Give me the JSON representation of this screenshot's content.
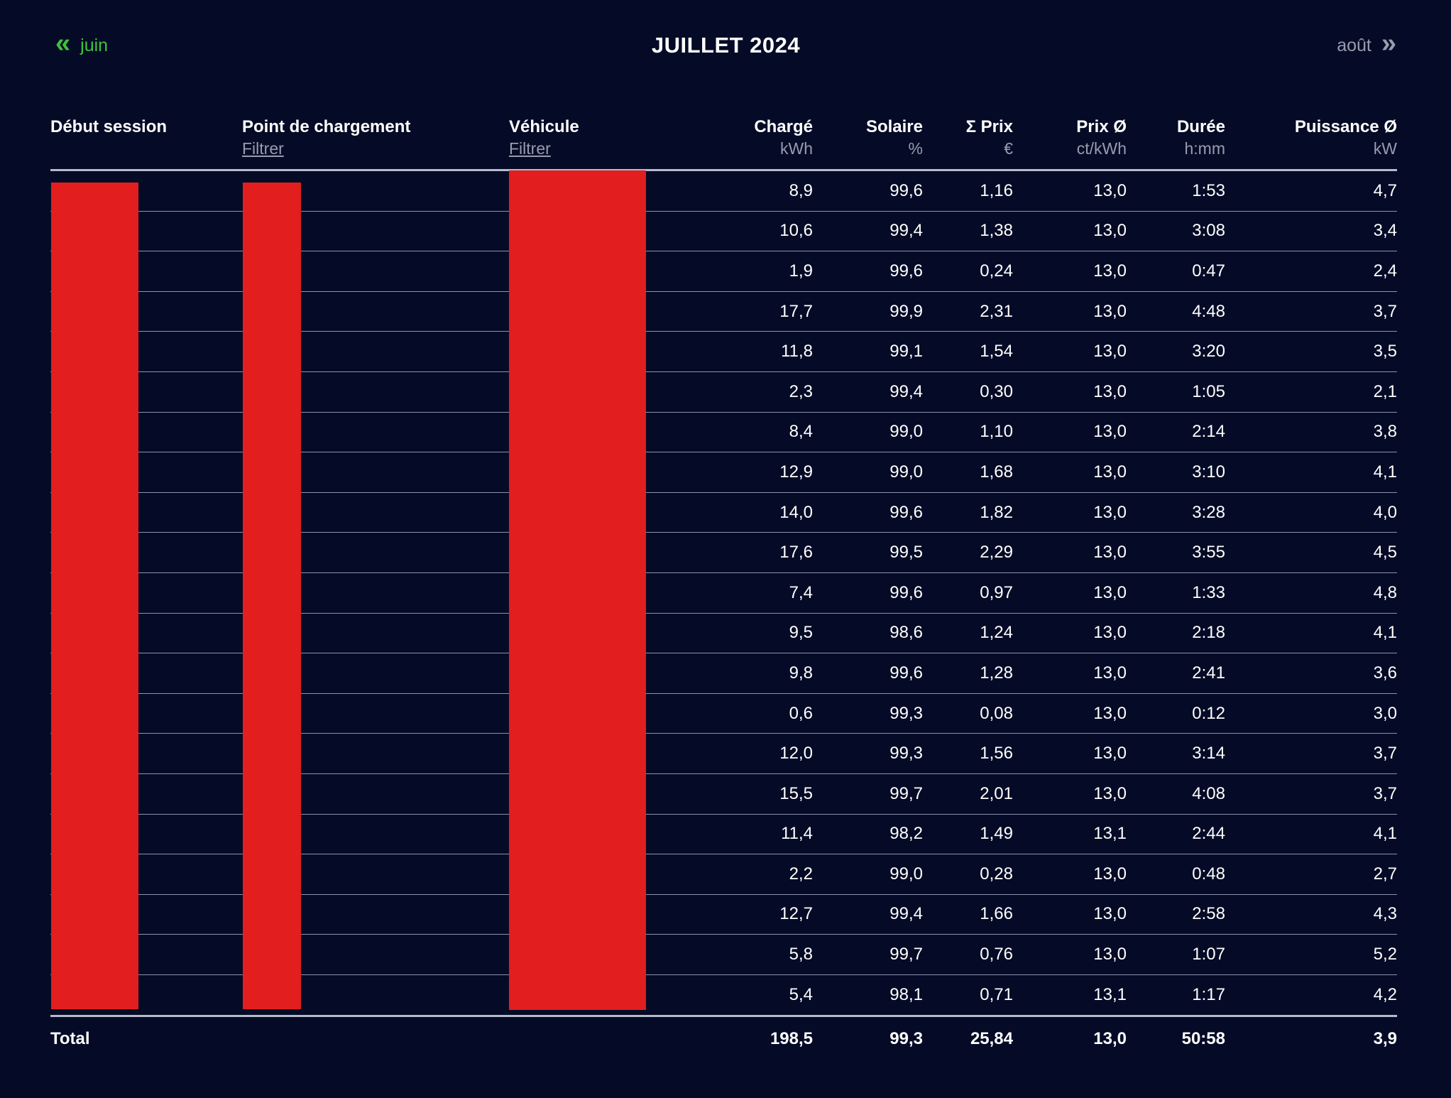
{
  "colors": {
    "background": "#050b26",
    "text": "#ffffff",
    "muted_text": "#989cae",
    "accent_green": "#3ec33e",
    "redaction_red": "#e21e1e",
    "separator": "#b6bac9",
    "row_line": "rgba(200,205,228,0.7)"
  },
  "nav": {
    "prev": {
      "label": "juin",
      "icon_glyph": "«"
    },
    "title": "JUILLET 2024",
    "next": {
      "label": "août",
      "icon_glyph": "»"
    }
  },
  "table": {
    "columns": [
      {
        "label": "Début session",
        "sub": ""
      },
      {
        "label": "Point de chargement",
        "sub": "Filtrer"
      },
      {
        "label": "Véhicule",
        "sub": "Filtrer"
      },
      {
        "label": "Chargé",
        "sub": "kWh"
      },
      {
        "label": "Solaire",
        "sub": "%"
      },
      {
        "label": "Σ Prix",
        "sub": "€"
      },
      {
        "label": "Prix Ø",
        "sub": "ct/kWh"
      },
      {
        "label": "Durée",
        "sub": "h:mm"
      },
      {
        "label": "Puissance Ø",
        "sub": "kW"
      }
    ],
    "redacted_columns": [
      "Début session",
      "Point de chargement",
      "Véhicule"
    ],
    "rows": [
      [
        "",
        "",
        "",
        "8,9",
        "99,6",
        "1,16",
        "13,0",
        "1:53",
        "4,7"
      ],
      [
        "",
        "",
        "",
        "10,6",
        "99,4",
        "1,38",
        "13,0",
        "3:08",
        "3,4"
      ],
      [
        "",
        "",
        "",
        "1,9",
        "99,6",
        "0,24",
        "13,0",
        "0:47",
        "2,4"
      ],
      [
        "",
        "",
        "",
        "17,7",
        "99,9",
        "2,31",
        "13,0",
        "4:48",
        "3,7"
      ],
      [
        "",
        "",
        "",
        "11,8",
        "99,1",
        "1,54",
        "13,0",
        "3:20",
        "3,5"
      ],
      [
        "",
        "",
        "",
        "2,3",
        "99,4",
        "0,30",
        "13,0",
        "1:05",
        "2,1"
      ],
      [
        "",
        "",
        "",
        "8,4",
        "99,0",
        "1,10",
        "13,0",
        "2:14",
        "3,8"
      ],
      [
        "",
        "",
        "",
        "12,9",
        "99,0",
        "1,68",
        "13,0",
        "3:10",
        "4,1"
      ],
      [
        "",
        "",
        "",
        "14,0",
        "99,6",
        "1,82",
        "13,0",
        "3:28",
        "4,0"
      ],
      [
        "",
        "",
        "",
        "17,6",
        "99,5",
        "2,29",
        "13,0",
        "3:55",
        "4,5"
      ],
      [
        "",
        "",
        "",
        "7,4",
        "99,6",
        "0,97",
        "13,0",
        "1:33",
        "4,8"
      ],
      [
        "",
        "",
        "",
        "9,5",
        "98,6",
        "1,24",
        "13,0",
        "2:18",
        "4,1"
      ],
      [
        "",
        "",
        "",
        "9,8",
        "99,6",
        "1,28",
        "13,0",
        "2:41",
        "3,6"
      ],
      [
        "",
        "",
        "",
        "0,6",
        "99,3",
        "0,08",
        "13,0",
        "0:12",
        "3,0"
      ],
      [
        "",
        "",
        "",
        "12,0",
        "99,3",
        "1,56",
        "13,0",
        "3:14",
        "3,7"
      ],
      [
        "",
        "",
        "",
        "15,5",
        "99,7",
        "2,01",
        "13,0",
        "4:08",
        "3,7"
      ],
      [
        "",
        "",
        "",
        "11,4",
        "98,2",
        "1,49",
        "13,1",
        "2:44",
        "4,1"
      ],
      [
        "",
        "",
        "",
        "2,2",
        "99,0",
        "0,28",
        "13,0",
        "0:48",
        "2,7"
      ],
      [
        "",
        "",
        "",
        "12,7",
        "99,4",
        "1,66",
        "13,0",
        "2:58",
        "4,3"
      ],
      [
        "",
        "",
        "",
        "5,8",
        "99,7",
        "0,76",
        "13,0",
        "1:07",
        "5,2"
      ],
      [
        "",
        "",
        "",
        "5,4",
        "98,1",
        "0,71",
        "13,1",
        "1:17",
        "4,2"
      ]
    ],
    "total": {
      "label": "Total",
      "charged_kwh": "198,5",
      "solar_pct": "99,3",
      "price_sum_eur": "25,84",
      "price_avg_ct_kwh": "13,0",
      "duration_hmm": "50:58",
      "power_avg_kw": "3,9"
    }
  }
}
